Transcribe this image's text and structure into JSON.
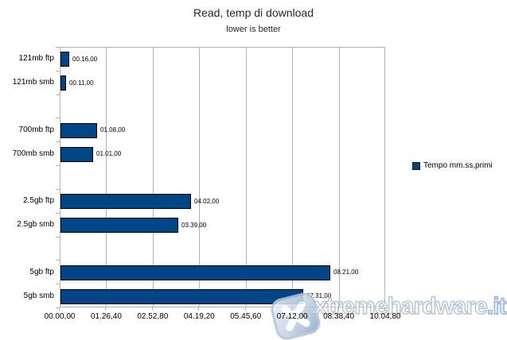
{
  "chart_data": {
    "type": "bar",
    "orientation": "horizontal",
    "title": "Read, temp di download",
    "subtitle": "lower is better",
    "categories": [
      "121mb ftp",
      "121mb smb",
      "700mb ftp",
      "700mb smb",
      "2.5gb ftp",
      "2.5gb smb",
      "5gb ftp",
      "5gb smb"
    ],
    "series": [
      {
        "name": "Tempo mm.ss,primi",
        "values_seconds": [
          16,
          11,
          68,
          61,
          242,
          219,
          501,
          451
        ],
        "value_labels": [
          "00.16,00",
          "00.11,00",
          "01.08,00",
          "01.01,00",
          "04.02,00",
          "03.39,00",
          "08.21,00",
          "07.31,00"
        ]
      }
    ],
    "x_axis": {
      "min_seconds": 0,
      "max_seconds": 604.8,
      "tick_interval_seconds": 86.4,
      "tick_labels": [
        "00.00,00",
        "01.26,40",
        "02.52,80",
        "04.19,20",
        "05.45,60",
        "07.12,00",
        "08.38,40",
        "10.04,80"
      ]
    },
    "legend": {
      "position": "right",
      "entries": [
        "Tempo mm.ss,primi"
      ]
    },
    "grid": true,
    "layout": {
      "rows": [
        0,
        1,
        3,
        4,
        6,
        7,
        9,
        10
      ],
      "total_rows": 11
    },
    "colors": {
      "bar_fill": "#004586",
      "bar_border": "#000000",
      "grid_line": "#b3b3b3",
      "plot_border": "#b3b3b3",
      "text": "#000000"
    }
  },
  "watermark": {
    "text": "xtremehardware",
    "suffix": ".it"
  }
}
